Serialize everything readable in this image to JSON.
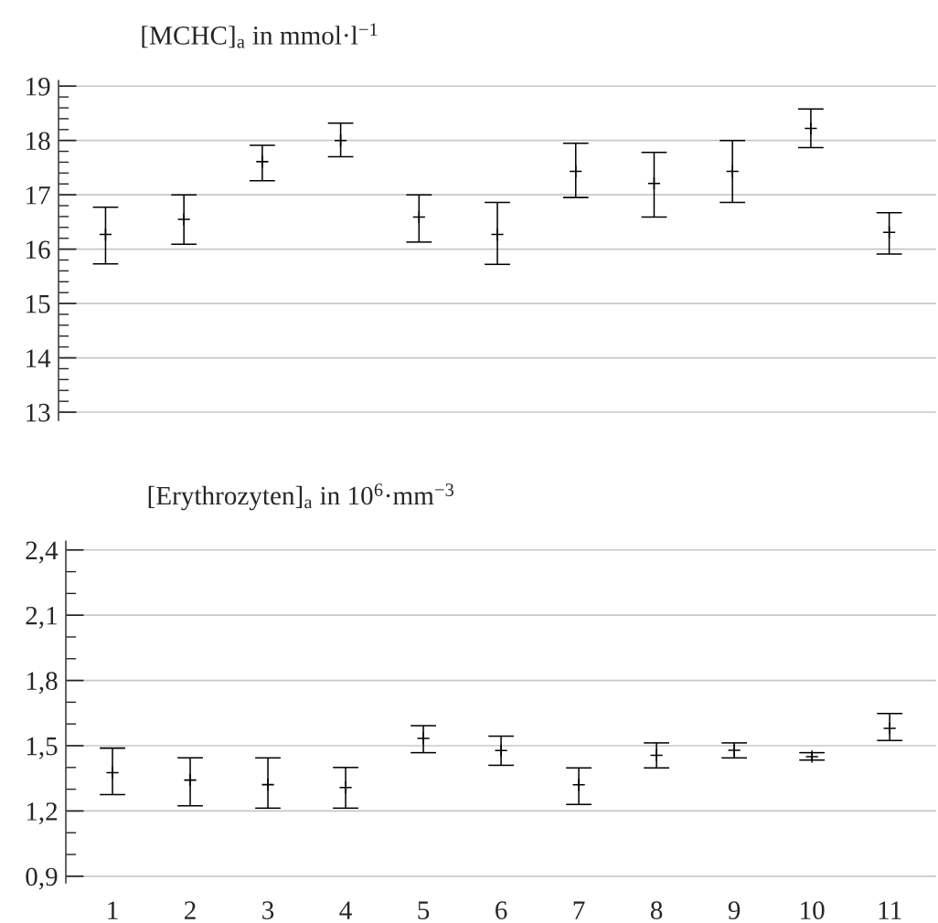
{
  "chart_data": [
    {
      "type": "scatter",
      "title": "[MCHC]$_{a}$ in mmol·l$^{−1}$",
      "categories": [
        null,
        null,
        null,
        null,
        null,
        null,
        null,
        null,
        null,
        null,
        null
      ],
      "tick_labels": "y",
      "series": [
        {
          "color": "#000000",
          "values": [
            16.27,
            16.55,
            17.61,
            18.0,
            16.59,
            16.27,
            17.43,
            17.21,
            17.43,
            18.22,
            16.31
          ],
          "errors": [
            [
              15.73,
              16.77
            ],
            [
              16.09,
              17.0
            ],
            [
              17.26,
              17.91
            ],
            [
              17.7,
              18.32
            ],
            [
              16.13,
              17.0
            ],
            [
              15.72,
              16.86
            ],
            [
              16.95,
              17.95
            ],
            [
              16.59,
              17.78
            ],
            [
              16.86,
              18.0
            ],
            [
              17.87,
              18.58
            ],
            [
              15.91,
              16.67
            ]
          ]
        }
      ],
      "marker": "cross",
      "grid": "y",
      "ylim": [
        12.85,
        19.1
      ],
      "yticks": [
        13,
        {
          "value": 13.2,
          "label": null
        },
        {
          "value": 13.4,
          "label": null
        },
        {
          "value": 13.6,
          "label": null
        },
        {
          "value": 13.8,
          "label": null
        },
        14,
        {
          "value": 14.2,
          "label": null
        },
        {
          "value": 14.4,
          "label": null
        },
        {
          "value": 14.6,
          "label": null
        },
        {
          "value": 14.8,
          "label": null
        },
        15,
        {
          "value": 15.2,
          "label": null
        },
        {
          "value": 15.4,
          "label": null
        },
        {
          "value": 15.6,
          "label": null
        },
        {
          "value": 15.8,
          "label": null
        },
        16,
        {
          "value": 16.2,
          "label": null
        },
        {
          "value": 16.4,
          "label": null
        },
        {
          "value": 16.6,
          "label": null
        },
        {
          "value": 16.8,
          "label": null
        },
        17,
        {
          "value": 17.2,
          "label": null
        },
        {
          "value": 17.4,
          "label": null
        },
        {
          "value": 17.6,
          "label": null
        },
        {
          "value": 17.8,
          "label": null
        },
        18,
        {
          "value": 18.2,
          "label": null
        },
        {
          "value": 18.4,
          "label": null
        },
        {
          "value": 18.6,
          "label": null
        },
        {
          "value": 18.8,
          "label": null
        },
        19
      ]
    },
    {
      "type": "scatter",
      "title": "[Erythrozyten]$_{a}$ in 10$^{6}$·mm$^{−3}$",
      "categories": [
        "1",
        "2",
        "3",
        "4",
        "5",
        "6",
        "7",
        "8",
        "9",
        "10",
        "11"
      ],
      "series": [
        {
          "color": "#000000",
          "values": [
            1.376,
            1.342,
            1.321,
            1.308,
            1.534,
            1.478,
            1.32,
            1.456,
            1.479,
            1.45,
            1.58
          ],
          "errors": [
            [
              1.275,
              1.489
            ],
            [
              1.224,
              1.444
            ],
            [
              1.213,
              1.444
            ],
            [
              1.213,
              1.4
            ],
            [
              1.468,
              1.592
            ],
            [
              1.41,
              1.544
            ],
            [
              1.23,
              1.398
            ],
            [
              1.398,
              1.513
            ],
            [
              1.444,
              1.513
            ],
            [
              1.434,
              1.468
            ],
            [
              1.524,
              1.648
            ]
          ]
        }
      ],
      "marker": "cross",
      "grid": "y",
      "ylim": [
        0.87,
        2.44
      ],
      "yticks": [
        {
          "value": 0.9,
          "label": "0,9"
        },
        {
          "value": 1.0,
          "label": null
        },
        {
          "value": 1.1,
          "label": null
        },
        {
          "value": 1.2,
          "label": "1,2"
        },
        {
          "value": 1.3,
          "label": null
        },
        {
          "value": 1.4,
          "label": null
        },
        {
          "value": 1.5,
          "label": "1,5"
        },
        {
          "value": 1.6,
          "label": null
        },
        {
          "value": 1.7,
          "label": null
        },
        {
          "value": 1.8,
          "label": "1,8"
        },
        {
          "value": 1.9,
          "label": null
        },
        {
          "value": 2.0,
          "label": null
        },
        {
          "value": 2.1,
          "label": "2,1"
        },
        {
          "value": 2.2,
          "label": null
        },
        {
          "value": 2.3,
          "label": null
        },
        {
          "value": 2.4,
          "label": "2,4"
        }
      ]
    }
  ]
}
